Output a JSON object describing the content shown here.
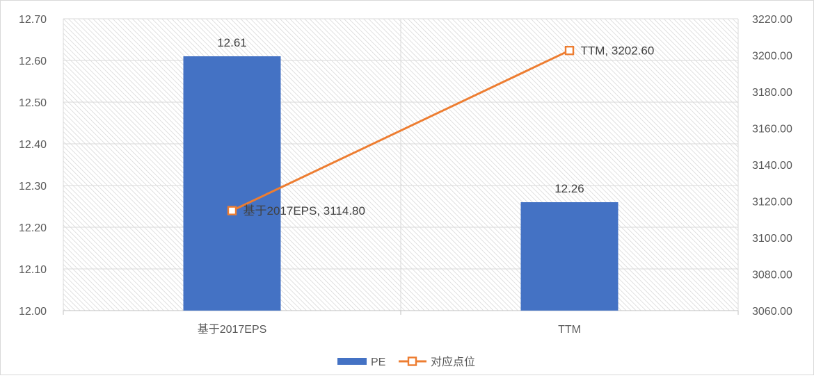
{
  "chart_data": {
    "type": "bar",
    "categories": [
      "基于2017EPS",
      "TTM"
    ],
    "series": [
      {
        "name": "PE",
        "type": "bar",
        "axis": "left",
        "values": [
          12.61,
          12.26
        ],
        "color": "#4472C4"
      },
      {
        "name": "对应点位",
        "type": "line",
        "axis": "right",
        "values": [
          3114.8,
          3202.6
        ],
        "color": "#ED7D31"
      }
    ],
    "y_left": {
      "min": 12.0,
      "max": 12.7,
      "ticks": [
        "12.00",
        "12.10",
        "12.20",
        "12.30",
        "12.40",
        "12.50",
        "12.60",
        "12.70"
      ]
    },
    "y_right": {
      "min": 3060.0,
      "max": 3220.0,
      "ticks": [
        "3060.00",
        "3080.00",
        "3100.00",
        "3120.00",
        "3140.00",
        "3160.00",
        "3180.00",
        "3200.00",
        "3220.00"
      ]
    },
    "bar_labels": [
      "12.61",
      "12.26"
    ],
    "line_labels": [
      "基于2017EPS, 3114.80",
      "TTM, 3202.60"
    ],
    "legend": [
      "PE",
      "对应点位"
    ],
    "legend_position": "bottom",
    "grid": true,
    "plot_background": "diagonal-hatch"
  }
}
